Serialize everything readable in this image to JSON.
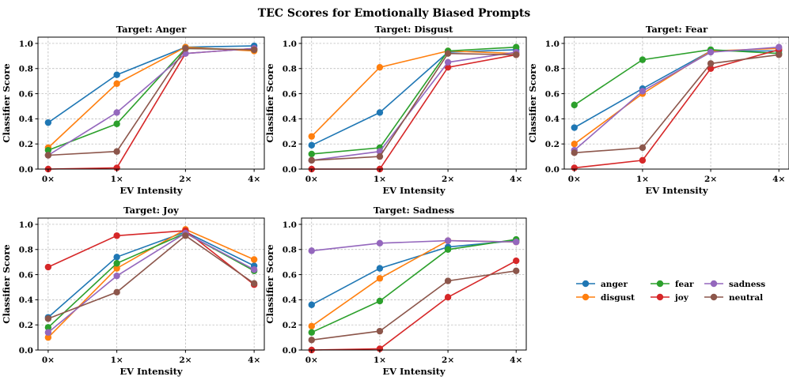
{
  "figure_title": "TEC Scores for Emotionally Biased Prompts",
  "colors": {
    "anger": "#1f77b4",
    "disgust": "#ff7f0e",
    "fear": "#2ca02c",
    "joy": "#d62728",
    "sadness": "#9467bd",
    "neutral": "#8c564b"
  },
  "legend": {
    "placement": "lower-right",
    "entries": [
      "anger",
      "disgust",
      "fear",
      "joy",
      "sadness",
      "neutral"
    ]
  },
  "chart_data": [
    {
      "type": "line",
      "title": "Target: Anger",
      "xlabel": "EV Intensity",
      "ylabel": "Classifier Score",
      "categories": [
        "0×",
        "1×",
        "2×",
        "4×"
      ],
      "ylim": [
        0,
        1.05
      ],
      "yticks": [
        "0.0",
        "0.2",
        "0.4",
        "0.6",
        "0.8",
        "1.0"
      ],
      "grid": true,
      "series": [
        {
          "name": "anger",
          "values": [
            0.37,
            0.75,
            0.97,
            0.98
          ]
        },
        {
          "name": "disgust",
          "values": [
            0.17,
            0.68,
            0.97,
            0.94
          ]
        },
        {
          "name": "fear",
          "values": [
            0.15,
            0.36,
            0.96,
            0.95
          ]
        },
        {
          "name": "joy",
          "values": [
            0.0,
            0.01,
            0.92,
            0.96
          ]
        },
        {
          "name": "sadness",
          "values": [
            0.11,
            0.45,
            0.92,
            0.96
          ]
        },
        {
          "name": "neutral",
          "values": [
            0.11,
            0.14,
            0.96,
            0.95
          ]
        }
      ]
    },
    {
      "type": "line",
      "title": "Target: Disgust",
      "xlabel": "EV Intensity",
      "ylabel": "Classifier Score",
      "categories": [
        "0×",
        "1×",
        "2×",
        "4×"
      ],
      "ylim": [
        0,
        1.05
      ],
      "yticks": [
        "0.0",
        "0.2",
        "0.4",
        "0.6",
        "0.8",
        "1.0"
      ],
      "grid": true,
      "series": [
        {
          "name": "anger",
          "values": [
            0.19,
            0.45,
            0.93,
            0.95
          ]
        },
        {
          "name": "disgust",
          "values": [
            0.26,
            0.81,
            0.94,
            0.92
          ]
        },
        {
          "name": "fear",
          "values": [
            0.12,
            0.17,
            0.94,
            0.97
          ]
        },
        {
          "name": "joy",
          "values": [
            0.0,
            0.0,
            0.81,
            0.91
          ]
        },
        {
          "name": "sadness",
          "values": [
            0.07,
            0.14,
            0.85,
            0.93
          ]
        },
        {
          "name": "neutral",
          "values": [
            0.07,
            0.1,
            0.92,
            0.91
          ]
        }
      ]
    },
    {
      "type": "line",
      "title": "Target: Fear",
      "xlabel": "EV Intensity",
      "ylabel": "Classifier Score",
      "categories": [
        "0×",
        "1×",
        "2×",
        "4×"
      ],
      "ylim": [
        0,
        1.05
      ],
      "yticks": [
        "0.0",
        "0.2",
        "0.4",
        "0.6",
        "0.8",
        "1.0"
      ],
      "grid": true,
      "series": [
        {
          "name": "anger",
          "values": [
            0.33,
            0.64,
            0.94,
            0.94
          ]
        },
        {
          "name": "disgust",
          "values": [
            0.2,
            0.6,
            0.94,
            0.96
          ]
        },
        {
          "name": "fear",
          "values": [
            0.51,
            0.87,
            0.95,
            0.92
          ]
        },
        {
          "name": "joy",
          "values": [
            0.01,
            0.07,
            0.8,
            0.95
          ]
        },
        {
          "name": "sadness",
          "values": [
            0.15,
            0.62,
            0.93,
            0.97
          ]
        },
        {
          "name": "neutral",
          "values": [
            0.13,
            0.17,
            0.84,
            0.91
          ]
        }
      ]
    },
    {
      "type": "line",
      "title": "Target: Joy",
      "xlabel": "EV Intensity",
      "ylabel": "Classifier Score",
      "categories": [
        "0×",
        "1×",
        "2×",
        "4×"
      ],
      "ylim": [
        0,
        1.05
      ],
      "yticks": [
        "0.0",
        "0.2",
        "0.4",
        "0.6",
        "0.8",
        "1.0"
      ],
      "grid": true,
      "series": [
        {
          "name": "anger",
          "values": [
            0.26,
            0.74,
            0.94,
            0.67
          ]
        },
        {
          "name": "disgust",
          "values": [
            0.1,
            0.65,
            0.96,
            0.72
          ]
        },
        {
          "name": "fear",
          "values": [
            0.18,
            0.69,
            0.93,
            0.63
          ]
        },
        {
          "name": "joy",
          "values": [
            0.66,
            0.91,
            0.95,
            0.52
          ]
        },
        {
          "name": "sadness",
          "values": [
            0.14,
            0.59,
            0.93,
            0.64
          ]
        },
        {
          "name": "neutral",
          "values": [
            0.25,
            0.46,
            0.91,
            0.53
          ]
        }
      ]
    },
    {
      "type": "line",
      "title": "Target: Sadness",
      "xlabel": "EV Intensity",
      "ylabel": "Classifier Score",
      "categories": [
        "0×",
        "1×",
        "2×",
        "4×"
      ],
      "ylim": [
        0,
        1.05
      ],
      "yticks": [
        "0.0",
        "0.2",
        "0.4",
        "0.6",
        "0.8",
        "1.0"
      ],
      "grid": true,
      "series": [
        {
          "name": "anger",
          "values": [
            0.36,
            0.65,
            0.82,
            0.87
          ]
        },
        {
          "name": "disgust",
          "values": [
            0.19,
            0.57,
            0.87,
            0.86
          ]
        },
        {
          "name": "fear",
          "values": [
            0.14,
            0.39,
            0.8,
            0.88
          ]
        },
        {
          "name": "joy",
          "values": [
            0.0,
            0.01,
            0.42,
            0.71
          ]
        },
        {
          "name": "sadness",
          "values": [
            0.79,
            0.85,
            0.87,
            0.86
          ]
        },
        {
          "name": "neutral",
          "values": [
            0.08,
            0.15,
            0.55,
            0.63
          ]
        }
      ]
    }
  ]
}
